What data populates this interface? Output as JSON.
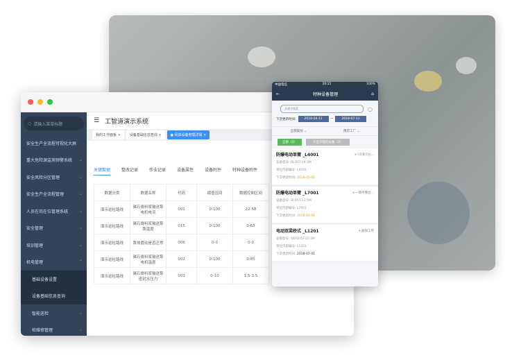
{
  "desktop": {
    "search_placeholder": "请输入菜单标题",
    "app_title": "工智道演示系统",
    "menu": [
      {
        "label": "安全生产全流程可视化大屏",
        "chevron": ""
      },
      {
        "label": "重大危险源监测预警系统",
        "chevron": "⌄"
      },
      {
        "label": "安全风险分区管理",
        "chevron": "⌄"
      },
      {
        "label": "安全生产全流程管理",
        "chevron": "⌄"
      },
      {
        "label": "人员在岗在位管理系统",
        "chevron": "⌄"
      },
      {
        "label": "安全管理",
        "chevron": "⌄"
      },
      {
        "label": "培训管理",
        "chevron": "⌄"
      },
      {
        "label": "机电管理",
        "chevron": "⌃"
      },
      {
        "label": "基础设备设置",
        "chevron": ""
      },
      {
        "label": "设备基础信息查询",
        "chevron": ""
      },
      {
        "label": "智能巡检",
        "chevron": "⌄"
      },
      {
        "label": "检维修管理",
        "chevron": "⌄"
      }
    ],
    "open_tabs": [
      "我的工作面板",
      "设备基础信息查询",
      "风体设备管理详情"
    ],
    "sub_tabs": [
      "关键数据",
      "整改记录",
      "作业记录",
      "设备属性",
      "设备附件",
      "特种设备附件"
    ],
    "table": {
      "headers": [
        "数据分类",
        "数据名称",
        "代码",
        "阈值区间",
        "数据控制区间"
      ],
      "rows": [
        [
          "演示巡检路线",
          "磷石膏料浆输送泵电机电流",
          "001",
          "0-100",
          "22-58"
        ],
        [
          "演示巡检路线",
          "磷石膏料浆输送泵泵温度",
          "015",
          "0-100",
          "0-65"
        ],
        [
          "演示巡检路线",
          "泵体震动是否正常",
          "006",
          "0-0",
          "0-0"
        ],
        [
          "演示巡检路线",
          "磷石膏料浆输送泵电机温度",
          "002",
          "0-100",
          "0-85"
        ],
        [
          "演示巡检路线",
          "磷石膏料浆输送泵密封水压力",
          "003",
          "0-10",
          "1.5-3.5"
        ]
      ]
    }
  },
  "mobile": {
    "carrier": "中国电信",
    "time": "20:21",
    "battery": "100%",
    "title": "特种设备管理",
    "search_placeholder": "关键字搜索",
    "date_label": "下次更新时间:",
    "date_from": "2018-04-11",
    "date_sep": "~",
    "date_to": "2018-07-11",
    "filter_type": "全部类别",
    "filter_factory": "南京工厂",
    "btn_all": "全部（3）",
    "btn_only": "只显示临检设备（2）",
    "cards": [
      {
        "name": "防爆电动单臂 _L4001",
        "location": "C0滨冷分...",
        "model_label": "设备型号:",
        "model": "BLD5T-14.5M",
        "code_label": "单位内部编号:",
        "code": "L4001",
        "date_label": "下次更新时间:",
        "date": "2018-05-01",
        "date_color": "#f0a020"
      },
      {
        "name": "防爆电动单臂 _L7001",
        "location": "一期平整合...",
        "model_label": "设备型号:",
        "model": "BLD5T-22.5M",
        "code_label": "单位内部编号:",
        "code": "L7001",
        "date_label": "下次更新时间:",
        "date": "2018-05-01",
        "date_color": "#f0a020"
      },
      {
        "name": "电动双梁桥式 _L1201",
        "location": "磨煤工序",
        "model_label": "设备型号:",
        "model": "QD32/5T-25.5M",
        "code_label": "单位内部编号:",
        "code": "L1201",
        "date_label": "下次更新时间:",
        "date": "2018-07-01",
        "date_color": "#333333"
      }
    ]
  },
  "colors": {
    "sidebar": "#33445a",
    "accent": "#3b8ff7",
    "phone_header": "#2c3c50"
  }
}
